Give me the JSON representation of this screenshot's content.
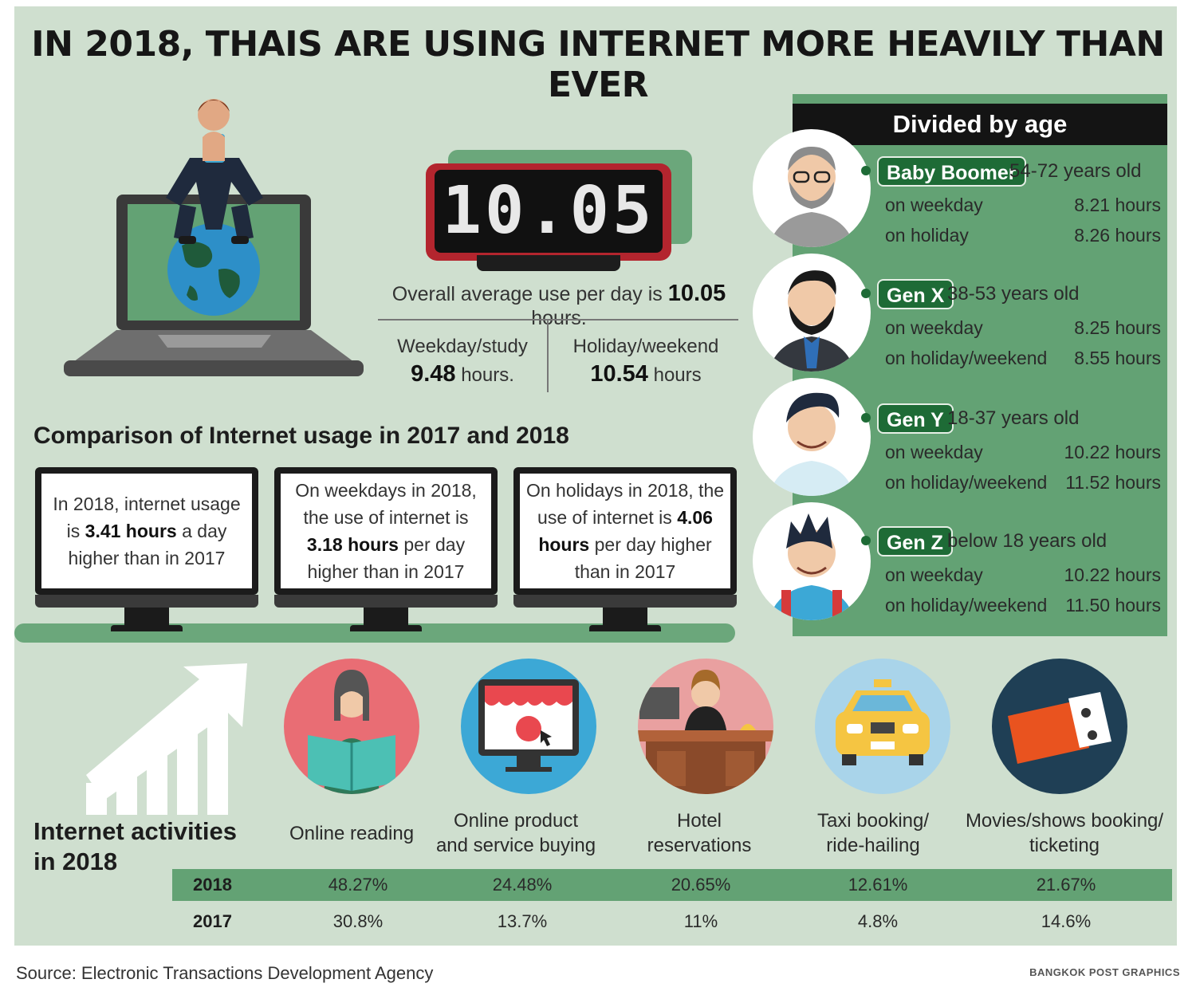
{
  "title": "IN 2018, THAIS ARE USING INTERNET MORE HEAVILY THAN EVER",
  "clock": {
    "display": "10.05"
  },
  "overall": {
    "prefix": "Overall average use per day is",
    "value": "10.05",
    "suffix": "hours."
  },
  "weekday": {
    "label": "Weekday/study",
    "value": "9.48",
    "unit": "hours."
  },
  "holiday": {
    "label": "Holiday/weekend",
    "value": "10.54",
    "unit": "hours"
  },
  "age": {
    "header": "Divided by age",
    "groups": [
      {
        "badge": "Baby Boomer",
        "range": "54-72 years old",
        "row1_label": "on weekday",
        "row1_value": "8.21 hours",
        "row2_label": "on holiday",
        "row2_value": "8.26 hours"
      },
      {
        "badge": "Gen X",
        "range": "38-53 years old",
        "row1_label": "on weekday",
        "row1_value": "8.25 hours",
        "row2_label": "on holiday/weekend",
        "row2_value": "8.55 hours"
      },
      {
        "badge": "Gen Y",
        "range": "18-37 years old",
        "row1_label": "on weekday",
        "row1_value": "10.22 hours",
        "row2_label": "on holiday/weekend",
        "row2_value": "11.52  hours"
      },
      {
        "badge": "Gen Z",
        "range": "below 18 years old",
        "row1_label": "on weekday",
        "row1_value": "10.22 hours",
        "row2_label": "on holiday/weekend",
        "row2_value": "11.50 hours"
      }
    ]
  },
  "comparison": {
    "title": "Comparison of Internet usage in 2017 and 2018",
    "monitors": [
      {
        "pre": "In 2018, internet usage is",
        "bold": "3.41 hours",
        "post": "a day higher than in 2017"
      },
      {
        "pre": "On weekdays in 2018, the use of internet is",
        "bold": "3.18 hours",
        "post": "per day higher than in 2017"
      },
      {
        "pre": "On holidays in 2018, the use of internet is",
        "bold": "4.06 hours",
        "post": "per day higher than in 2017"
      }
    ]
  },
  "activities": {
    "title_line1": "Internet activities",
    "title_line2": "in 2018",
    "labels": [
      {
        "line1": "Online reading",
        "line2": ""
      },
      {
        "line1": "Online product",
        "line2": "and service buying"
      },
      {
        "line1": "Hotel",
        "line2": "reservations"
      },
      {
        "line1": "Taxi booking/",
        "line2": "ride-hailing"
      },
      {
        "line1": "Movies/shows booking/",
        "line2": "ticketing"
      }
    ],
    "icons": [
      "reading-icon",
      "shopping-icon",
      "hotel-icon",
      "taxi-icon",
      "ticket-icon"
    ],
    "rows": [
      {
        "year": "2018",
        "values": [
          "48.27%",
          "24.48%",
          "20.65%",
          "12.61%",
          "21.67%"
        ]
      },
      {
        "year": "2017",
        "values": [
          "30.8%",
          "13.7%",
          "11%",
          "4.8%",
          "14.6%"
        ]
      }
    ]
  },
  "footer": {
    "source": "Source: Electronic Transactions Development Agency",
    "credit": "BANGKOK POST GRAPHICS"
  },
  "colors": {
    "background": "#cfdfcf",
    "accent_green": "#63a274",
    "badge_green": "#1e6b36",
    "clock_red": "#b3252e"
  }
}
